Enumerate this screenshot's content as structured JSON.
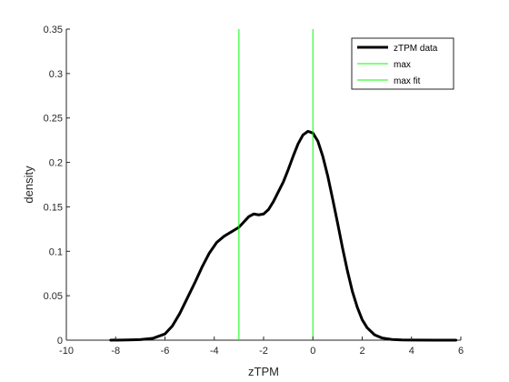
{
  "chart_data": {
    "type": "line",
    "xlabel": "zTPM",
    "ylabel": "density",
    "xlim": [
      -10,
      6
    ],
    "ylim": [
      0,
      0.35
    ],
    "xticks": [
      -10,
      -8,
      -6,
      -4,
      -2,
      0,
      2,
      4,
      6
    ],
    "yticks": [
      0,
      0.05,
      0.1,
      0.15,
      0.2,
      0.25,
      0.3,
      0.35
    ],
    "xtick_labels": [
      "-10",
      "-8",
      "-6",
      "-4",
      "-2",
      "0",
      "2",
      "4",
      "6"
    ],
    "ytick_labels": [
      "0",
      "0.05",
      "0.1",
      "0.15",
      "0.2",
      "0.25",
      "0.3",
      "0.35"
    ],
    "grid": false,
    "legend_position": "top-right",
    "series": [
      {
        "name": "zTPM data",
        "color": "#000000",
        "x": [
          -8.2,
          -7.5,
          -7.0,
          -6.5,
          -6.0,
          -5.7,
          -5.4,
          -5.1,
          -4.8,
          -4.5,
          -4.2,
          -3.9,
          -3.6,
          -3.3,
          -3.0,
          -2.8,
          -2.6,
          -2.4,
          -2.2,
          -2.0,
          -1.8,
          -1.6,
          -1.4,
          -1.2,
          -1.0,
          -0.8,
          -0.6,
          -0.4,
          -0.2,
          0.0,
          0.2,
          0.4,
          0.6,
          0.8,
          1.0,
          1.2,
          1.4,
          1.6,
          1.8,
          2.0,
          2.2,
          2.5,
          2.8,
          3.2,
          3.6,
          4.0,
          5.0,
          5.8
        ],
        "y": [
          0.0,
          0.0002,
          0.0006,
          0.002,
          0.007,
          0.016,
          0.03,
          0.047,
          0.064,
          0.082,
          0.098,
          0.11,
          0.117,
          0.122,
          0.127,
          0.133,
          0.139,
          0.142,
          0.141,
          0.142,
          0.147,
          0.156,
          0.167,
          0.178,
          0.192,
          0.207,
          0.221,
          0.231,
          0.235,
          0.233,
          0.224,
          0.207,
          0.185,
          0.159,
          0.132,
          0.104,
          0.078,
          0.055,
          0.037,
          0.023,
          0.014,
          0.006,
          0.0025,
          0.0008,
          0.0003,
          0.0001,
          0.0,
          0.0
        ]
      },
      {
        "name": "max",
        "color": "#00ff00",
        "type": "vline",
        "x": -3.0
      },
      {
        "name": "max fit",
        "color": "#00ff00",
        "type": "vline",
        "x": 0.0
      }
    ]
  }
}
